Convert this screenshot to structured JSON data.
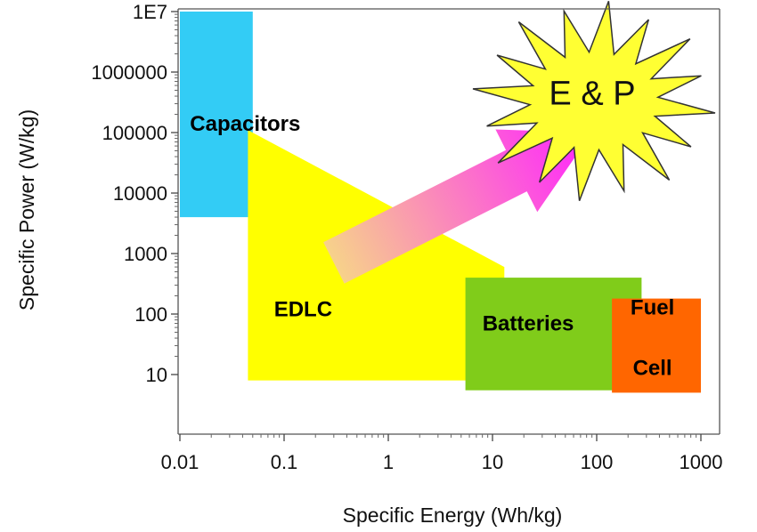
{
  "chart_data": {
    "type": "area",
    "xscale": "log",
    "yscale": "log",
    "xlim": [
      0.01,
      1000
    ],
    "ylim": [
      1,
      10000000
    ],
    "xlabel": "Specific Energy (Wh/kg)",
    "ylabel": "Specific Power (W/kg)",
    "x_ticks": [
      {
        "value": 0.01,
        "label": "0.01"
      },
      {
        "value": 0.1,
        "label": "0.1"
      },
      {
        "value": 1,
        "label": "1"
      },
      {
        "value": 10,
        "label": "10"
      },
      {
        "value": 100,
        "label": "100"
      },
      {
        "value": 1000,
        "label": "1000"
      }
    ],
    "y_ticks": [
      {
        "value": 10,
        "label": "10"
      },
      {
        "value": 100,
        "label": "100"
      },
      {
        "value": 1000,
        "label": "1000"
      },
      {
        "value": 10000,
        "label": "10000"
      },
      {
        "value": 100000,
        "label": "100000"
      },
      {
        "value": 1000000,
        "label": "1000000"
      },
      {
        "value": 10000000,
        "label": "1E7"
      }
    ],
    "regions": [
      {
        "label": "Capacitors",
        "color": "#33ccf5",
        "x": [
          0.01,
          0.05
        ],
        "y": [
          4000,
          10000000
        ],
        "label_at": {
          "x": 0.0125,
          "y": 140000
        }
      },
      {
        "label": "EDLC",
        "color": "#ffff00",
        "polygon": [
          [
            0.045,
            110000
          ],
          [
            0.045,
            8
          ],
          [
            13,
            8
          ],
          [
            13,
            600
          ]
        ],
        "label_at": {
          "x": 0.08,
          "y": 120
        }
      },
      {
        "label": "Batteries",
        "color": "#80cc1a",
        "x": [
          5.5,
          270
        ],
        "y": [
          5.5,
          400
        ],
        "label_at": {
          "x": 8,
          "y": 70
        }
      },
      {
        "label_lines": [
          "Fuel",
          "Cell"
        ],
        "color": "#ff6600",
        "x": [
          140,
          1000
        ],
        "y": [
          5,
          180
        ],
        "label_at": {
          "x": 190,
          "y": [
            130,
            13
          ]
        }
      }
    ],
    "arrow": {
      "from": {
        "x": 0.3,
        "y": 700
      },
      "to": {
        "x": 90,
        "y": 100000
      },
      "gradient": [
        "#f7d28a",
        "#ff22ff"
      ]
    },
    "burst": {
      "label": "E & P",
      "color": "#ffff33",
      "center": {
        "x": 100,
        "y": 500000
      }
    },
    "grid": false
  }
}
